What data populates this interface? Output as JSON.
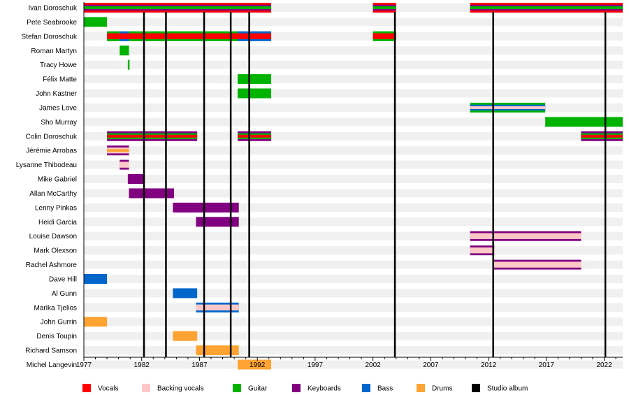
{
  "chart_data": {
    "type": "timeline",
    "xlim": [
      1977,
      2023.6
    ],
    "xticks": [
      1977,
      1982,
      1987,
      1992,
      1997,
      2002,
      2007,
      2012,
      2017,
      2022
    ],
    "grid": false,
    "legend_placement": "bottom",
    "colors": {
      "vocals": "#FF0000",
      "backing": "#FFC8C8",
      "guitar": "#00B300",
      "keyboards": "#800080",
      "bass": "#0066CC",
      "drums": "#FFA333",
      "album": "#000000"
    },
    "legend": [
      {
        "key": "vocals",
        "label": "Vocals"
      },
      {
        "key": "backing",
        "label": "Backing vocals"
      },
      {
        "key": "guitar",
        "label": "Guitar"
      },
      {
        "key": "keyboards",
        "label": "Keyboards"
      },
      {
        "key": "bass",
        "label": "Bass"
      },
      {
        "key": "drums",
        "label": "Drums"
      },
      {
        "key": "album",
        "label": "Studio album"
      }
    ],
    "albums": [
      1982.2,
      1984.1,
      1987.4,
      1989.7,
      1991.3,
      2003.9,
      2012.4,
      2022.1
    ],
    "members": [
      {
        "name": "Ivan Doroschuk",
        "periods": [
          [
            1977,
            1993.2,
            [
              "vocals",
              "keyboards",
              "guitar"
            ]
          ],
          [
            2002,
            2004,
            [
              "vocals",
              "keyboards",
              "guitar"
            ]
          ],
          [
            2010.4,
            2023.6,
            [
              "vocals",
              "keyboards",
              "guitar"
            ]
          ]
        ]
      },
      {
        "name": "Pete Seabrooke",
        "periods": [
          [
            1977,
            1979,
            [
              "guitar"
            ]
          ]
        ]
      },
      {
        "name": "Stefan Doroschuk",
        "periods": [
          [
            1979,
            1980.1,
            [
              "guitar",
              "vocals"
            ]
          ],
          [
            1980.1,
            1980.9,
            [
              "bass",
              "vocals"
            ]
          ],
          [
            1980.9,
            1990.3,
            [
              "guitar",
              "vocals"
            ]
          ],
          [
            1990.3,
            1993.2,
            [
              "bass",
              "vocals"
            ]
          ],
          [
            2002,
            2004,
            [
              "guitar",
              "vocals"
            ]
          ]
        ]
      },
      {
        "name": "Roman Martyn",
        "periods": [
          [
            1980.1,
            1980.9,
            [
              "guitar"
            ]
          ]
        ]
      },
      {
        "name": "Tracy Howe",
        "periods": [
          [
            1980.8,
            1980.95,
            [
              "guitar"
            ]
          ]
        ]
      },
      {
        "name": "Félix Matte",
        "periods": [
          [
            1990.3,
            1993.2,
            [
              "guitar"
            ]
          ]
        ]
      },
      {
        "name": "John Kastner",
        "periods": [
          [
            1990.3,
            1993.2,
            [
              "guitar"
            ]
          ]
        ]
      },
      {
        "name": "James Love",
        "periods": [
          [
            2010.4,
            2016.9,
            [
              "guitar",
              "bass",
              "backing"
            ]
          ]
        ]
      },
      {
        "name": "Sho Murray",
        "periods": [
          [
            2016.9,
            2023.6,
            [
              "guitar"
            ]
          ]
        ]
      },
      {
        "name": "Colin Doroschuk",
        "periods": [
          [
            1979,
            1986.8,
            [
              "keyboards",
              "guitar",
              "vocals"
            ]
          ],
          [
            1990.3,
            1993.2,
            [
              "keyboards",
              "guitar",
              "vocals"
            ]
          ],
          [
            2020,
            2023.6,
            [
              "keyboards",
              "guitar",
              "vocals"
            ]
          ]
        ]
      },
      {
        "name": "Jérémie Arrobas",
        "periods": [
          [
            1979,
            1980.9,
            [
              "keyboards",
              "backing",
              "drums"
            ]
          ]
        ]
      },
      {
        "name": "Lysanne Thibodeau",
        "periods": [
          [
            1980.1,
            1980.9,
            [
              "keyboards",
              "backing"
            ]
          ]
        ]
      },
      {
        "name": "Mike Gabriel",
        "periods": [
          [
            1980.8,
            1982.2,
            [
              "keyboards"
            ]
          ]
        ]
      },
      {
        "name": "Allan McCarthy",
        "periods": [
          [
            1980.9,
            1984.8,
            [
              "keyboards"
            ]
          ]
        ]
      },
      {
        "name": "Lenny Pinkas",
        "periods": [
          [
            1984.7,
            1990.4,
            [
              "keyboards"
            ]
          ]
        ]
      },
      {
        "name": "Heidi Garcia",
        "periods": [
          [
            1986.7,
            1990.4,
            [
              "keyboards"
            ]
          ]
        ]
      },
      {
        "name": "Louise Dawson",
        "periods": [
          [
            2010.4,
            2020,
            [
              "keyboards",
              "backing"
            ]
          ]
        ]
      },
      {
        "name": "Mark Olexson",
        "periods": [
          [
            2010.4,
            2012.5,
            [
              "keyboards",
              "backing"
            ]
          ]
        ]
      },
      {
        "name": "Rachel Ashmore",
        "periods": [
          [
            2012.4,
            2020,
            [
              "keyboards",
              "backing"
            ]
          ]
        ]
      },
      {
        "name": "Dave Hill",
        "periods": [
          [
            1977,
            1979,
            [
              "bass"
            ]
          ]
        ]
      },
      {
        "name": "Al Gunn",
        "periods": [
          [
            1984.7,
            1986.8,
            [
              "bass"
            ]
          ]
        ]
      },
      {
        "name": "Marika Tjelios",
        "periods": [
          [
            1986.7,
            1990.4,
            [
              "bass",
              "backing"
            ]
          ]
        ]
      },
      {
        "name": "John Gurrin",
        "periods": [
          [
            1977,
            1979,
            [
              "drums"
            ]
          ]
        ]
      },
      {
        "name": "Denis Toupin",
        "periods": [
          [
            1984.7,
            1986.8,
            [
              "drums"
            ]
          ]
        ]
      },
      {
        "name": "Richard Samson",
        "periods": [
          [
            1986.7,
            1990.4,
            [
              "drums"
            ]
          ]
        ]
      },
      {
        "name": "Michel Langevin",
        "periods": [
          [
            1990.3,
            1993.2,
            [
              "drums"
            ]
          ]
        ]
      }
    ]
  }
}
